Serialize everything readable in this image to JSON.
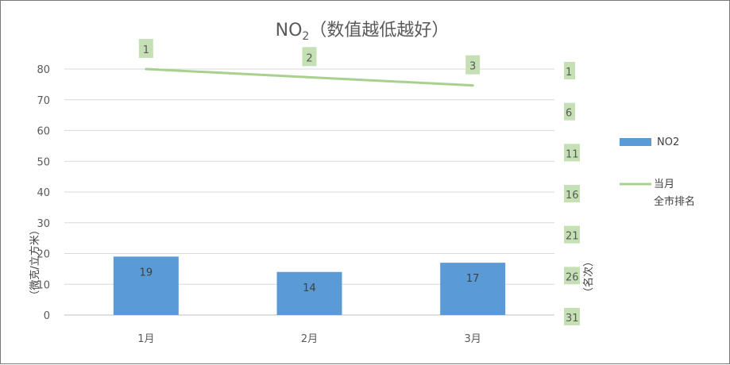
{
  "chart_data": {
    "type": "bar",
    "title": "NO",
    "title_sub": "2",
    "title_suffix": "（数值越低越好）",
    "categories": [
      "1月",
      "2月",
      "3月"
    ],
    "series": [
      {
        "name": "NO2",
        "type": "bar",
        "axis": "left",
        "values": [
          19,
          14,
          17
        ],
        "color": "#5b9bd5"
      },
      {
        "name": "当月\n全市排名",
        "name_lines": [
          "当月",
          "全市排名"
        ],
        "type": "line",
        "axis": "right",
        "values": [
          1,
          2,
          3
        ],
        "color": "#a9d18e"
      }
    ],
    "ylabel_left": "（微克/立方米）",
    "ylabel_right": "（名次）",
    "ylim_left": [
      0,
      80
    ],
    "yticks_left": [
      "0",
      "10",
      "20",
      "30",
      "40",
      "50",
      "60",
      "70",
      "80"
    ],
    "ylim_right_reversed": [
      1,
      31
    ],
    "yticks_right": [
      "1",
      "6",
      "11",
      "16",
      "21",
      "26",
      "31"
    ],
    "grid": true,
    "legend_position": "right"
  }
}
